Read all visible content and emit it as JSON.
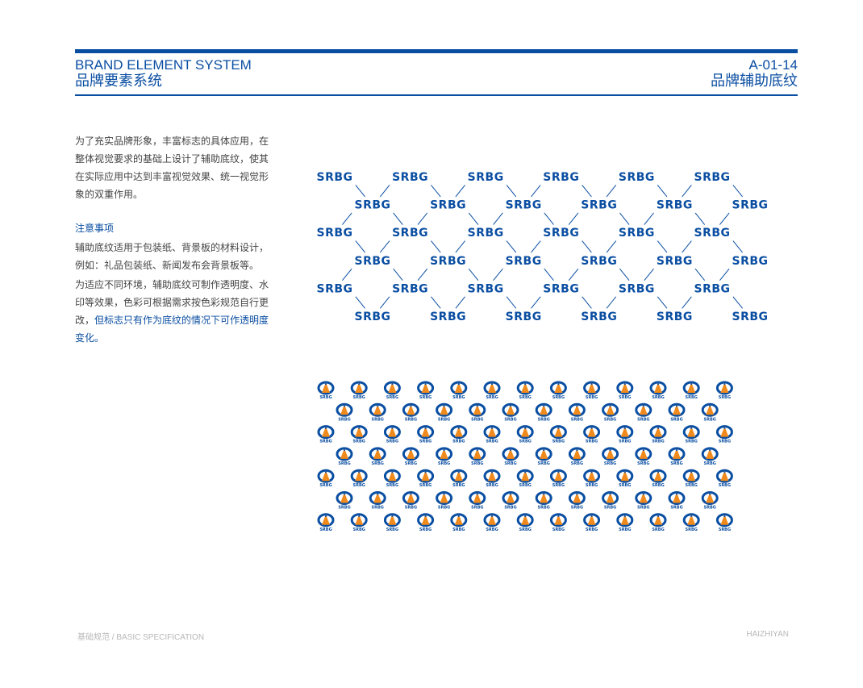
{
  "header": {
    "title_en": "BRAND ELEMENT SYSTEM",
    "title_cn": "品牌要素系统",
    "page_code": "A-01-14",
    "page_title": "品牌辅助底纹"
  },
  "content": {
    "intro": "为了充实品牌形象，丰富标志的具体应用，在整体视觉要求的基础上设计了辅助底纹，使其在实际应用中达到丰富视觉效果、统一视觉形象的双重作用。",
    "notes_title": "注意事项",
    "note1": "辅助底纹适用于包装纸、背景板的材料设计，例如：礼品包装纸、新闻发布会背景板等。",
    "note2": "为适应不同环境，辅助底纹可制作透明度、水印等效果，色彩可根据需求按色彩规范自行更改，",
    "note2_highlight": "但标志只有作为底纹的情况下可作透明度变化。"
  },
  "patterns": {
    "brand_text": "SRBG",
    "primary_color": "#0a4ea2",
    "accent_color": "#f08a1c"
  },
  "footer": {
    "left": "基础规范 / BASIC SPECIFICATION",
    "right": "HAIZHIYAN"
  }
}
